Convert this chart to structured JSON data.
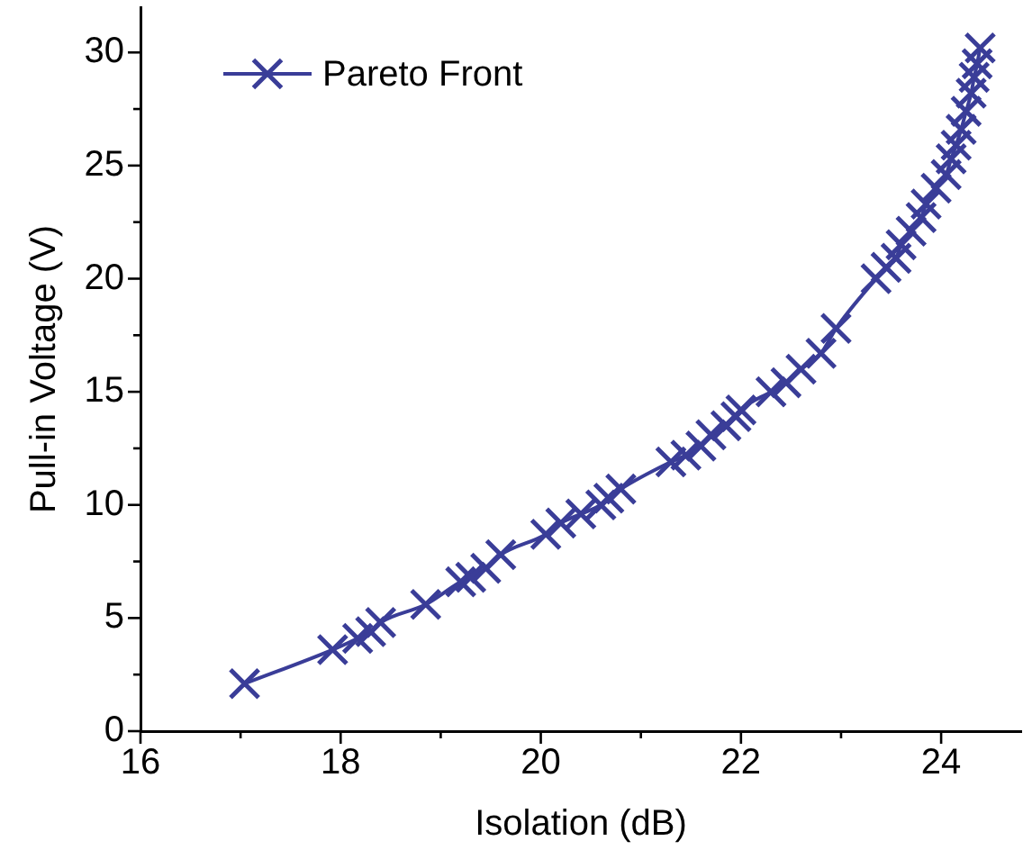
{
  "chart_data": {
    "type": "line",
    "xlabel": "Isolation (dB)",
    "ylabel": "Pull-in Voltage (V)",
    "x": [
      17.04,
      17.92,
      18.17,
      18.3,
      18.4,
      18.85,
      19.2,
      19.3,
      19.45,
      19.6,
      20.05,
      20.2,
      20.4,
      20.6,
      20.68,
      20.8,
      21.3,
      21.45,
      21.6,
      21.7,
      21.85,
      21.95,
      22.0,
      22.3,
      22.45,
      22.6,
      22.8,
      22.95,
      23.35,
      23.45,
      23.55,
      23.6,
      23.7,
      23.8,
      23.85,
      23.95,
      24.05,
      24.1,
      24.15,
      24.2,
      24.25,
      24.3,
      24.33,
      24.36,
      24.39
    ],
    "series": [
      {
        "name": "Pareto Front",
        "color": "#3a3d98",
        "values": [
          2.1,
          3.6,
          4.1,
          4.4,
          4.8,
          5.6,
          6.6,
          6.8,
          7.2,
          7.8,
          8.7,
          9.2,
          9.6,
          10.0,
          10.3,
          10.7,
          11.9,
          12.2,
          12.6,
          13.1,
          13.5,
          13.9,
          14.2,
          15.0,
          15.4,
          16.0,
          16.7,
          17.8,
          20.0,
          20.5,
          20.9,
          21.5,
          22.1,
          22.7,
          23.3,
          24.0,
          24.6,
          25.3,
          25.9,
          26.6,
          27.4,
          28.2,
          28.9,
          29.5,
          30.2
        ]
      }
    ],
    "xlim": [
      16,
      24.8
    ],
    "ylim": [
      0,
      32
    ],
    "xticks": [
      16,
      {
        "value": 17,
        "label": null
      },
      18,
      {
        "value": 19,
        "label": null
      },
      20,
      {
        "value": 21,
        "label": null
      },
      22,
      {
        "value": 23,
        "label": null
      },
      24
    ],
    "yticks": [
      0,
      {
        "value": 2.5,
        "label": null
      },
      5,
      {
        "value": 7.5,
        "label": null
      },
      10,
      {
        "value": 12.5,
        "label": null
      },
      15,
      {
        "value": 17.5,
        "label": null
      },
      20,
      {
        "value": 22.5,
        "label": null
      },
      25,
      {
        "value": 27.5,
        "label": null
      },
      30
    ],
    "grid": false,
    "legend": "top left",
    "marker": "cross",
    "line_style": "solid"
  }
}
